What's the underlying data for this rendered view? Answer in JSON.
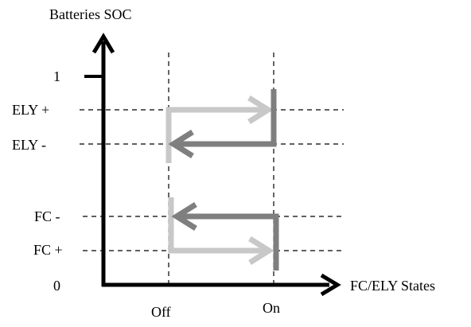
{
  "diagram": {
    "y_axis_title": "Batteries SOC",
    "x_axis_title": "FC/ELY States",
    "y_levels": [
      {
        "id": "one",
        "label": "1"
      },
      {
        "id": "ely-plus",
        "label": "ELY +"
      },
      {
        "id": "ely-minus",
        "label": "ELY -"
      },
      {
        "id": "fc-minus",
        "label": "FC -"
      },
      {
        "id": "fc-plus",
        "label": "FC +"
      },
      {
        "id": "zero",
        "label": "0"
      }
    ],
    "x_states": [
      {
        "id": "off",
        "label": "Off"
      },
      {
        "id": "on",
        "label": "On"
      }
    ],
    "hysteresis": [
      {
        "name": "ELY",
        "turn_on_level": "ELY +",
        "turn_off_level": "ELY -",
        "on_arrow_color": "#c8c8c8",
        "off_arrow_color": "#7f7f7f"
      },
      {
        "name": "FC",
        "turn_on_level": "FC -",
        "turn_off_level": "FC +",
        "on_arrow_color": "#7f7f7f",
        "off_arrow_color": "#c8c8c8"
      }
    ]
  }
}
